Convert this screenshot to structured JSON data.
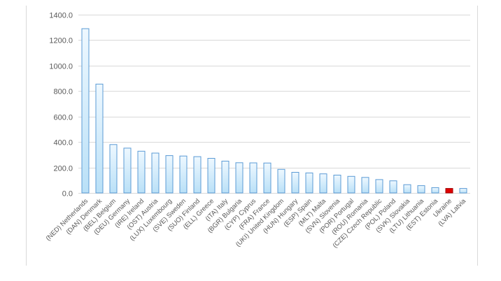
{
  "chart_data": {
    "type": "bar",
    "title": "",
    "xlabel": "",
    "ylabel": "",
    "ylim": [
      0,
      1400
    ],
    "yticks": [
      "0.0",
      "200.0",
      "400.0",
      "600.0",
      "800.0",
      "1000.0",
      "1200.0",
      "1400.0"
    ],
    "grid": true,
    "categories": [
      "(NED) Netherlands",
      "(DAN) Denmark",
      "(BEL) Belgium",
      "(DEU) Germany",
      "(IRE) Ireland",
      "(OST) Austria",
      "(LUX) Luxembourg",
      "(SVE) Sweden",
      "(SUO) Finland",
      "(ELL) Greece",
      "(ITA) Italy",
      "(BGR) Bulgaria",
      "(CYP) Cyprus",
      "(FRA) France",
      "(UKI) United Kingdom",
      "(HUN) Hungary",
      "(ESP) Spain",
      "(MLT) Malta",
      "(SVN) Slovenia",
      "(POR) Portugal",
      "(ROU) Romania",
      "(CZE) Czech Republic",
      "(POL) Poland",
      "(SVK) Slovakia",
      "(LTU) Lithuania",
      "(EST) Estonia",
      "Ukraine",
      "(LVA) Latvia"
    ],
    "values": [
      1290,
      855,
      380,
      352,
      328,
      313,
      293,
      290,
      285,
      272,
      250,
      237,
      236,
      235,
      185,
      162,
      157,
      150,
      140,
      130,
      122,
      105,
      95,
      65,
      57,
      42,
      35,
      35
    ],
    "highlight_index": 26,
    "colors": {
      "bar_fill_top": "#eef8ff",
      "bar_fill_bottom": "#b9e0f7",
      "bar_stroke": "#5b9bd5",
      "highlight_fill": "#e00000",
      "highlight_stroke": "#a00000",
      "grid": "#d9d9d9",
      "axis_text": "#595959"
    }
  }
}
